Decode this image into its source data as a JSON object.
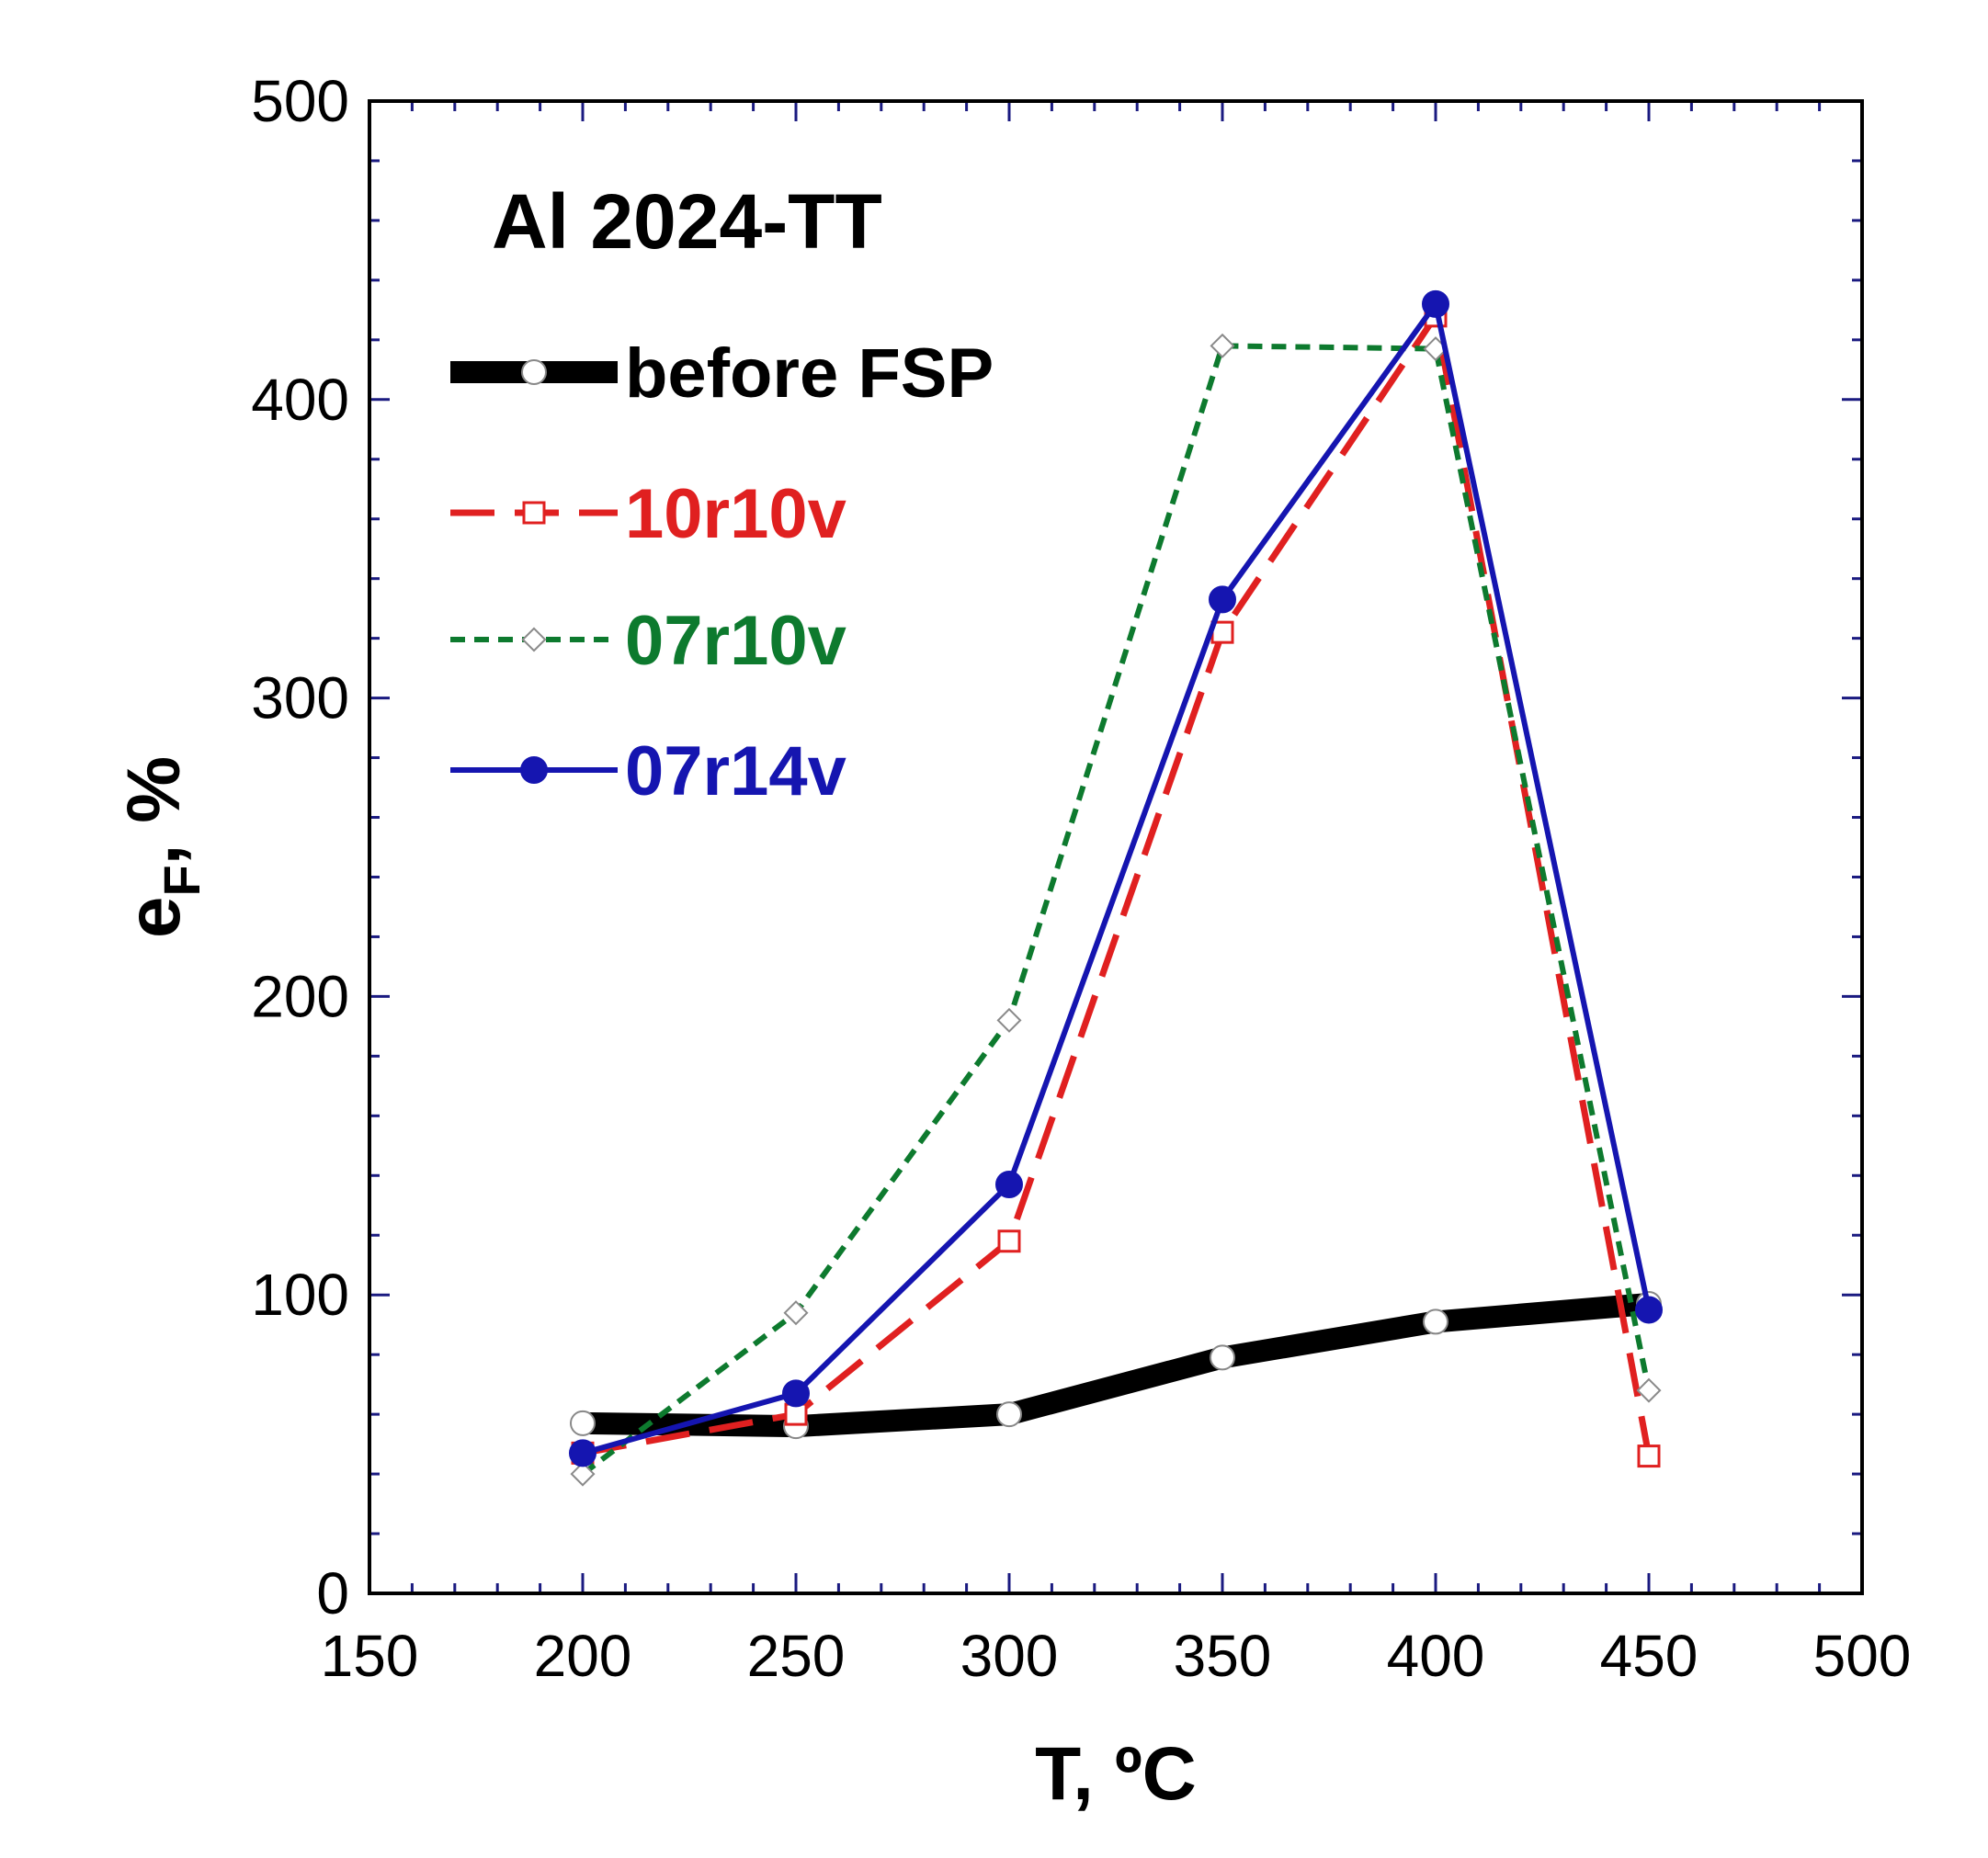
{
  "chart_data": {
    "type": "line",
    "title": "Al 2024-TT",
    "xlabel": "T, ºC",
    "ylabel_main": "e",
    "ylabel_sub": "F",
    "ylabel_suffix": ", %",
    "xlim": [
      150,
      500
    ],
    "ylim": [
      0,
      500
    ],
    "xticks": [
      150,
      200,
      250,
      300,
      350,
      400,
      450,
      500
    ],
    "yticks": [
      0,
      100,
      200,
      300,
      400,
      500
    ],
    "legend_position": "top-left",
    "series": [
      {
        "name": "before FSP",
        "color": "#000000",
        "style": "thick-solid",
        "marker": "open-circle",
        "x": [
          200,
          250,
          300,
          350,
          400,
          450
        ],
        "y": [
          57,
          56,
          60,
          79,
          91,
          97
        ]
      },
      {
        "name": "10r10v",
        "color": "#e02020",
        "style": "long-dash",
        "marker": "open-square",
        "x": [
          200,
          250,
          300,
          350,
          400,
          450
        ],
        "y": [
          47,
          60,
          118,
          322,
          428,
          46
        ]
      },
      {
        "name": "07r10v",
        "color": "#0d7a2e",
        "style": "short-dash",
        "marker": "open-diamond",
        "x": [
          200,
          250,
          300,
          350,
          400,
          450
        ],
        "y": [
          40,
          94,
          192,
          418,
          417,
          68
        ]
      },
      {
        "name": "07r14v",
        "color": "#1515b0",
        "style": "solid",
        "marker": "filled-circle",
        "x": [
          200,
          250,
          300,
          350,
          400,
          450
        ],
        "y": [
          47,
          67,
          137,
          333,
          432,
          95
        ]
      }
    ]
  }
}
